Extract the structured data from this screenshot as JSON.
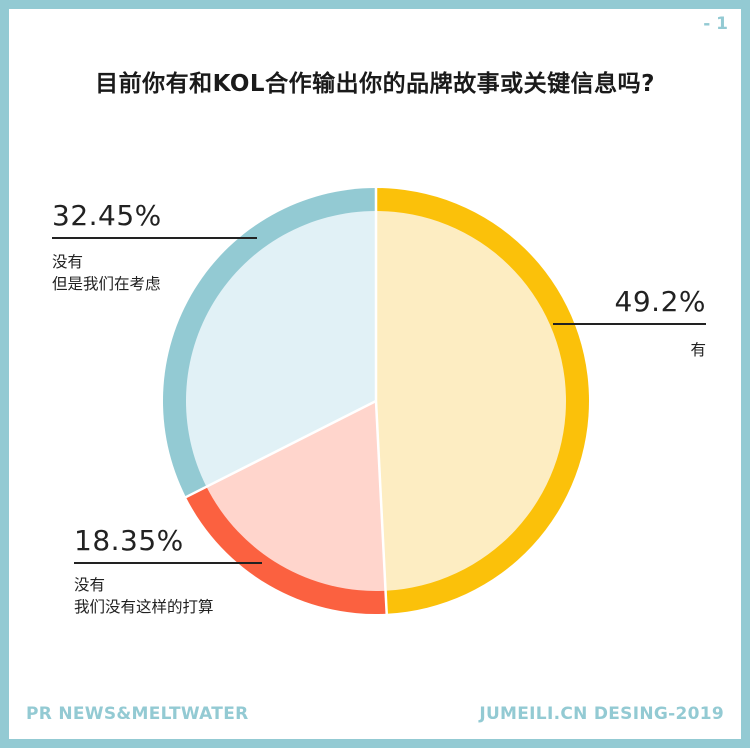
{
  "page_number": "- 1",
  "footer": {
    "source": "PR NEWS&MELTWATER",
    "credit": "JUMEILI.CN DESING-2019"
  },
  "chart_data": {
    "type": "pie",
    "title": "目前你有和KOL合作输出你的品牌故事或关键信息吗?",
    "start_angle_deg": 0,
    "direction": "clockwise",
    "slices": [
      {
        "value": 49.2,
        "value_label": "49.2%",
        "label_lines": [
          "有"
        ],
        "fill": "#fdedc2",
        "ring": "#fbc10a"
      },
      {
        "value": 18.35,
        "value_label": "18.35%",
        "label_lines": [
          "没有",
          "我们没有这样的打算"
        ],
        "fill": "#ffd5cc",
        "ring": "#fb6140"
      },
      {
        "value": 32.45,
        "value_label": "32.45%",
        "label_lines": [
          "没有",
          "但是我们在考虑"
        ],
        "fill": "#e1f1f6",
        "ring": "#93cad3"
      }
    ]
  }
}
